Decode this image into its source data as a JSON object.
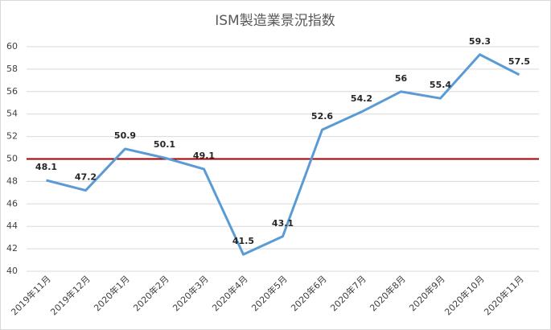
{
  "chart_data": {
    "type": "line",
    "title": "ISM製造業景況指数",
    "categories": [
      "2019年11月",
      "2019年12月",
      "2020年1月",
      "2020年2月",
      "2020年3月",
      "2020年4月",
      "2020年5月",
      "2020年6月",
      "2020年7月",
      "2020年8月",
      "2020年9月",
      "2020年10月",
      "2020年11月"
    ],
    "values": [
      48.1,
      47.2,
      50.9,
      50.1,
      49.1,
      41.5,
      43.1,
      52.6,
      54.2,
      56,
      55.4,
      59.3,
      57.5
    ],
    "color": "#5b9bd5",
    "ylim": [
      40,
      60
    ],
    "yticks": [
      40,
      42,
      44,
      46,
      48,
      50,
      52,
      54,
      56,
      58,
      60
    ],
    "grid": true,
    "reference_line": {
      "value": 50,
      "color": "#a00000"
    }
  }
}
